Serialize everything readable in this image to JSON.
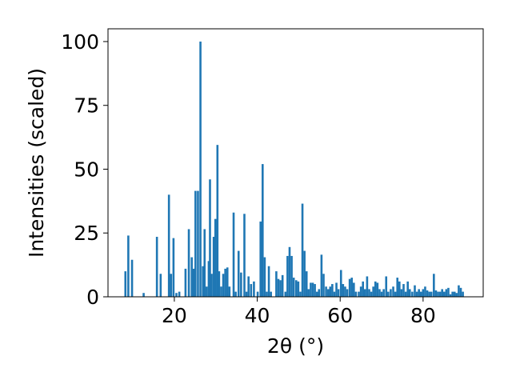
{
  "chart_data": {
    "type": "bar",
    "title": "",
    "xlabel": "2θ (°)",
    "ylabel": "Intensities (scaled)",
    "xlim": [
      4,
      94.5
    ],
    "ylim": [
      0,
      105
    ],
    "xticks": [
      20,
      40,
      60,
      80
    ],
    "yticks": [
      0,
      25,
      50,
      75,
      100
    ],
    "grid": false,
    "bar_color": "#1f77b4",
    "bar_width": 0.5,
    "points": [
      {
        "x": 8.2,
        "y": 10
      },
      {
        "x": 8.9,
        "y": 24
      },
      {
        "x": 9.8,
        "y": 14.5
      },
      {
        "x": 12.6,
        "y": 1.5
      },
      {
        "x": 15.8,
        "y": 23.5
      },
      {
        "x": 16.7,
        "y": 9
      },
      {
        "x": 18.7,
        "y": 40
      },
      {
        "x": 19.2,
        "y": 9
      },
      {
        "x": 19.8,
        "y": 23
      },
      {
        "x": 20.5,
        "y": 1.5
      },
      {
        "x": 21.2,
        "y": 2
      },
      {
        "x": 22.7,
        "y": 11
      },
      {
        "x": 23.5,
        "y": 26.5
      },
      {
        "x": 24.2,
        "y": 15.5
      },
      {
        "x": 24.7,
        "y": 11
      },
      {
        "x": 25.1,
        "y": 41.5
      },
      {
        "x": 25.7,
        "y": 41.5
      },
      {
        "x": 26.3,
        "y": 100
      },
      {
        "x": 26.9,
        "y": 12
      },
      {
        "x": 27.3,
        "y": 26.5
      },
      {
        "x": 27.8,
        "y": 4
      },
      {
        "x": 28.3,
        "y": 14
      },
      {
        "x": 28.6,
        "y": 46
      },
      {
        "x": 29.0,
        "y": 9
      },
      {
        "x": 29.5,
        "y": 23.5
      },
      {
        "x": 29.9,
        "y": 30.5
      },
      {
        "x": 30.4,
        "y": 59.5
      },
      {
        "x": 30.8,
        "y": 10
      },
      {
        "x": 31.3,
        "y": 4
      },
      {
        "x": 31.8,
        "y": 9
      },
      {
        "x": 32.3,
        "y": 11
      },
      {
        "x": 32.8,
        "y": 11.5
      },
      {
        "x": 33.3,
        "y": 4
      },
      {
        "x": 34.3,
        "y": 33
      },
      {
        "x": 34.8,
        "y": 2
      },
      {
        "x": 35.5,
        "y": 18
      },
      {
        "x": 36.1,
        "y": 9.5
      },
      {
        "x": 36.9,
        "y": 32.5
      },
      {
        "x": 37.4,
        "y": 2
      },
      {
        "x": 37.9,
        "y": 8
      },
      {
        "x": 38.5,
        "y": 5
      },
      {
        "x": 39.2,
        "y": 6
      },
      {
        "x": 40.1,
        "y": 2
      },
      {
        "x": 40.8,
        "y": 29.5
      },
      {
        "x": 41.3,
        "y": 52
      },
      {
        "x": 41.8,
        "y": 15.5
      },
      {
        "x": 42.3,
        "y": 2
      },
      {
        "x": 42.8,
        "y": 12
      },
      {
        "x": 43.3,
        "y": 2
      },
      {
        "x": 44.6,
        "y": 10
      },
      {
        "x": 45.1,
        "y": 7
      },
      {
        "x": 45.6,
        "y": 6.5
      },
      {
        "x": 46.1,
        "y": 8.5
      },
      {
        "x": 46.8,
        "y": 2
      },
      {
        "x": 47.3,
        "y": 16
      },
      {
        "x": 47.8,
        "y": 19.5
      },
      {
        "x": 48.3,
        "y": 16
      },
      {
        "x": 48.8,
        "y": 7.5
      },
      {
        "x": 49.4,
        "y": 6.5
      },
      {
        "x": 49.9,
        "y": 6
      },
      {
        "x": 50.4,
        "y": 2
      },
      {
        "x": 50.9,
        "y": 36.5
      },
      {
        "x": 51.4,
        "y": 18
      },
      {
        "x": 51.9,
        "y": 10
      },
      {
        "x": 52.4,
        "y": 3
      },
      {
        "x": 52.9,
        "y": 5.5
      },
      {
        "x": 53.4,
        "y": 5.5
      },
      {
        "x": 53.9,
        "y": 5
      },
      {
        "x": 54.4,
        "y": 2
      },
      {
        "x": 54.9,
        "y": 3
      },
      {
        "x": 55.5,
        "y": 16.5
      },
      {
        "x": 56.0,
        "y": 9
      },
      {
        "x": 56.6,
        "y": 4
      },
      {
        "x": 57.1,
        "y": 3
      },
      {
        "x": 57.6,
        "y": 4
      },
      {
        "x": 58.1,
        "y": 5
      },
      {
        "x": 58.6,
        "y": 2
      },
      {
        "x": 59.1,
        "y": 5.5
      },
      {
        "x": 59.6,
        "y": 3
      },
      {
        "x": 60.2,
        "y": 10.5
      },
      {
        "x": 60.7,
        "y": 5
      },
      {
        "x": 61.2,
        "y": 4
      },
      {
        "x": 61.7,
        "y": 3
      },
      {
        "x": 62.3,
        "y": 7
      },
      {
        "x": 62.8,
        "y": 7.5
      },
      {
        "x": 63.3,
        "y": 5.5
      },
      {
        "x": 63.8,
        "y": 2
      },
      {
        "x": 64.5,
        "y": 2
      },
      {
        "x": 65.0,
        "y": 4
      },
      {
        "x": 65.5,
        "y": 6
      },
      {
        "x": 66.0,
        "y": 3
      },
      {
        "x": 66.5,
        "y": 8
      },
      {
        "x": 67.0,
        "y": 3
      },
      {
        "x": 67.5,
        "y": 2
      },
      {
        "x": 68.0,
        "y": 4
      },
      {
        "x": 68.5,
        "y": 6
      },
      {
        "x": 69.0,
        "y": 5.5
      },
      {
        "x": 69.5,
        "y": 3
      },
      {
        "x": 70.0,
        "y": 2
      },
      {
        "x": 70.5,
        "y": 3
      },
      {
        "x": 71.1,
        "y": 8
      },
      {
        "x": 71.6,
        "y": 2
      },
      {
        "x": 72.2,
        "y": 3
      },
      {
        "x": 72.8,
        "y": 4
      },
      {
        "x": 73.3,
        "y": 2
      },
      {
        "x": 73.8,
        "y": 7.5
      },
      {
        "x": 74.3,
        "y": 6
      },
      {
        "x": 74.8,
        "y": 3
      },
      {
        "x": 75.3,
        "y": 5
      },
      {
        "x": 75.8,
        "y": 2
      },
      {
        "x": 76.3,
        "y": 6
      },
      {
        "x": 76.8,
        "y": 3
      },
      {
        "x": 77.4,
        "y": 2
      },
      {
        "x": 78.0,
        "y": 4.5
      },
      {
        "x": 78.5,
        "y": 2
      },
      {
        "x": 79.0,
        "y": 3
      },
      {
        "x": 79.5,
        "y": 2
      },
      {
        "x": 80.0,
        "y": 3
      },
      {
        "x": 80.5,
        "y": 4
      },
      {
        "x": 81.0,
        "y": 2.5
      },
      {
        "x": 81.5,
        "y": 2
      },
      {
        "x": 82.0,
        "y": 2
      },
      {
        "x": 82.6,
        "y": 9
      },
      {
        "x": 83.1,
        "y": 2.5
      },
      {
        "x": 83.6,
        "y": 2
      },
      {
        "x": 84.1,
        "y": 2
      },
      {
        "x": 84.6,
        "y": 3
      },
      {
        "x": 85.1,
        "y": 2
      },
      {
        "x": 85.6,
        "y": 3
      },
      {
        "x": 86.1,
        "y": 3.5
      },
      {
        "x": 86.6,
        "y": 1
      },
      {
        "x": 87.1,
        "y": 2
      },
      {
        "x": 87.6,
        "y": 2
      },
      {
        "x": 88.1,
        "y": 1.5
      },
      {
        "x": 88.6,
        "y": 4.5
      },
      {
        "x": 89.1,
        "y": 3.5
      },
      {
        "x": 89.6,
        "y": 2
      }
    ]
  }
}
